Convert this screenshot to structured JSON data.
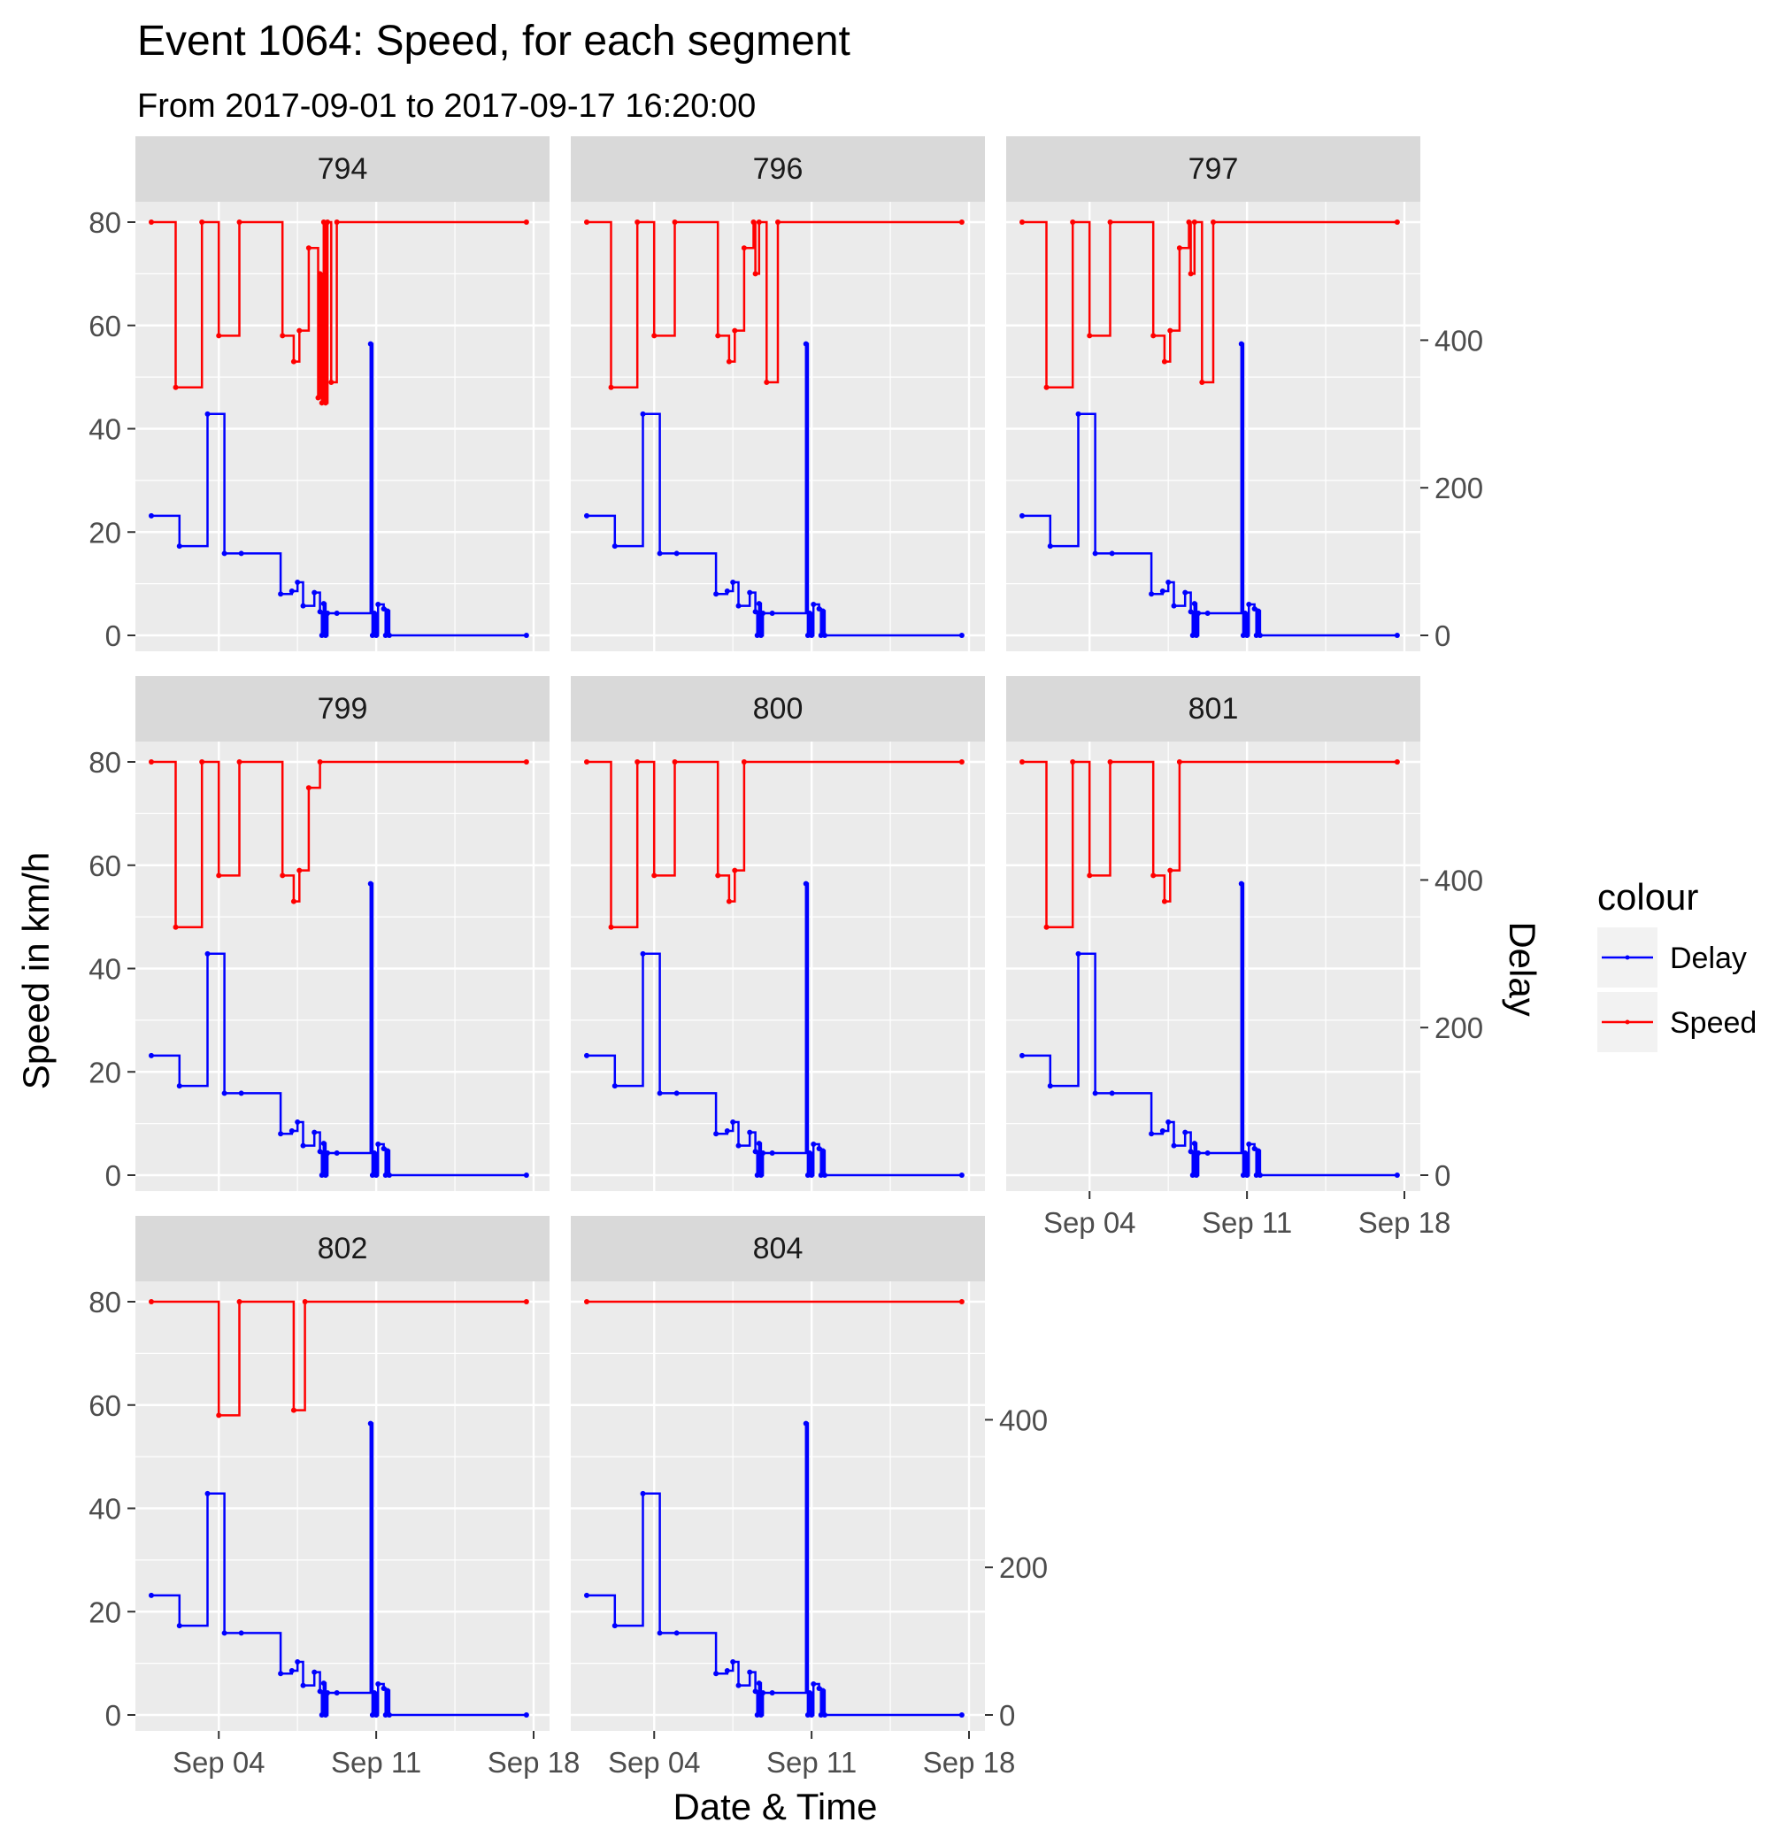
{
  "chart_data": {
    "type": "line",
    "title": "Event 1064: Speed, for each segment",
    "subtitle": "From 2017-09-01 to 2017-09-17 16:20:00",
    "xlabel": "Date & Time",
    "ylabel": "Speed in km/h",
    "y2label": "Delay",
    "x_ticks": [
      "Sep 04",
      "Sep 11",
      "Sep 18"
    ],
    "xlim": [
      "2017-09-01",
      "2017-09-18"
    ],
    "ylim": [
      0,
      80
    ],
    "y_ticks": [
      0,
      20,
      40,
      60,
      80
    ],
    "y2lim": [
      0,
      560
    ],
    "y2_ticks": [
      0,
      200,
      400
    ],
    "legend": {
      "title": "colour",
      "position": "right",
      "entries": [
        {
          "name": "Delay",
          "color": "#0000ff"
        },
        {
          "name": "Speed",
          "color": "#ff0000"
        }
      ]
    },
    "delay_series": [
      [
        "2017-09-01",
        162
      ],
      [
        "2017-09-02 06:00",
        121
      ],
      [
        "2017-09-03 12:00",
        300
      ],
      [
        "2017-09-04 06:00",
        111
      ],
      [
        "2017-09-05",
        111
      ],
      [
        "2017-09-06 18:00",
        56
      ],
      [
        "2017-09-07 06:00",
        60
      ],
      [
        "2017-09-07 12:00",
        72
      ],
      [
        "2017-09-07 18:00",
        40
      ],
      [
        "2017-09-08 06:00",
        58
      ],
      [
        "2017-09-08 12:00",
        32
      ],
      [
        "2017-09-08 14:00",
        0
      ],
      [
        "2017-09-08 16:00",
        43
      ],
      [
        "2017-09-08 18:00",
        0
      ],
      [
        "2017-09-08 20:00",
        30
      ],
      [
        "2017-09-09 06:00",
        30
      ],
      [
        "2017-09-10 18:00",
        395
      ],
      [
        "2017-09-10 20:00",
        0
      ],
      [
        "2017-09-10 22:00",
        30
      ],
      [
        "2017-09-11",
        0
      ],
      [
        "2017-09-11 02:00",
        42
      ],
      [
        "2017-09-11 08:00",
        36
      ],
      [
        "2017-09-11 10:00",
        0
      ],
      [
        "2017-09-11 12:00",
        33
      ],
      [
        "2017-09-11 14:00",
        0
      ],
      [
        "2017-09-17 16:20",
        0
      ]
    ],
    "panels": [
      {
        "label": "794",
        "speed_series": [
          [
            "2017-09-01",
            80
          ],
          [
            "2017-09-02 02:00",
            48
          ],
          [
            "2017-09-03 06:00",
            80
          ],
          [
            "2017-09-04",
            58
          ],
          [
            "2017-09-04 22:00",
            80
          ],
          [
            "2017-09-06 20:00",
            58
          ],
          [
            "2017-09-07 08:00",
            53
          ],
          [
            "2017-09-07 14:00",
            59
          ],
          [
            "2017-09-08",
            75
          ],
          [
            "2017-09-08 10:00",
            46
          ],
          [
            "2017-09-08 12:00",
            70
          ],
          [
            "2017-09-08 14:00",
            45
          ],
          [
            "2017-09-08 16:00",
            80
          ],
          [
            "2017-09-08 18:00",
            45
          ],
          [
            "2017-09-08 20:00",
            80
          ],
          [
            "2017-09-09",
            49
          ],
          [
            "2017-09-09 06:00",
            80
          ],
          [
            "2017-09-17 16:20",
            80
          ]
        ]
      },
      {
        "label": "796",
        "speed_series": [
          [
            "2017-09-01",
            80
          ],
          [
            "2017-09-02 02:00",
            48
          ],
          [
            "2017-09-03 06:00",
            80
          ],
          [
            "2017-09-04",
            58
          ],
          [
            "2017-09-04 22:00",
            80
          ],
          [
            "2017-09-06 20:00",
            58
          ],
          [
            "2017-09-07 08:00",
            53
          ],
          [
            "2017-09-07 14:00",
            59
          ],
          [
            "2017-09-08",
            75
          ],
          [
            "2017-09-08 10:00",
            80
          ],
          [
            "2017-09-08 12:00",
            70
          ],
          [
            "2017-09-08 16:00",
            80
          ],
          [
            "2017-09-09",
            49
          ],
          [
            "2017-09-09 12:00",
            80
          ],
          [
            "2017-09-17 16:20",
            80
          ]
        ]
      },
      {
        "label": "797",
        "speed_series": [
          [
            "2017-09-01",
            80
          ],
          [
            "2017-09-02 02:00",
            48
          ],
          [
            "2017-09-03 06:00",
            80
          ],
          [
            "2017-09-04",
            58
          ],
          [
            "2017-09-04 22:00",
            80
          ],
          [
            "2017-09-06 20:00",
            58
          ],
          [
            "2017-09-07 08:00",
            53
          ],
          [
            "2017-09-07 14:00",
            59
          ],
          [
            "2017-09-08",
            75
          ],
          [
            "2017-09-08 10:00",
            80
          ],
          [
            "2017-09-08 12:00",
            70
          ],
          [
            "2017-09-08 16:00",
            80
          ],
          [
            "2017-09-09",
            49
          ],
          [
            "2017-09-09 12:00",
            80
          ],
          [
            "2017-09-17 16:20",
            80
          ]
        ]
      },
      {
        "label": "799",
        "speed_series": [
          [
            "2017-09-01",
            80
          ],
          [
            "2017-09-02 02:00",
            48
          ],
          [
            "2017-09-03 06:00",
            80
          ],
          [
            "2017-09-04",
            58
          ],
          [
            "2017-09-04 22:00",
            80
          ],
          [
            "2017-09-06 20:00",
            58
          ],
          [
            "2017-09-07 08:00",
            53
          ],
          [
            "2017-09-07 14:00",
            59
          ],
          [
            "2017-09-08",
            75
          ],
          [
            "2017-09-08 12:00",
            80
          ],
          [
            "2017-09-17 16:20",
            80
          ]
        ]
      },
      {
        "label": "800",
        "speed_series": [
          [
            "2017-09-01",
            80
          ],
          [
            "2017-09-02 02:00",
            48
          ],
          [
            "2017-09-03 06:00",
            80
          ],
          [
            "2017-09-04",
            58
          ],
          [
            "2017-09-04 22:00",
            80
          ],
          [
            "2017-09-06 20:00",
            58
          ],
          [
            "2017-09-07 08:00",
            53
          ],
          [
            "2017-09-07 14:00",
            59
          ],
          [
            "2017-09-08",
            80
          ],
          [
            "2017-09-17 16:20",
            80
          ]
        ]
      },
      {
        "label": "801",
        "speed_series": [
          [
            "2017-09-01",
            80
          ],
          [
            "2017-09-02 02:00",
            48
          ],
          [
            "2017-09-03 06:00",
            80
          ],
          [
            "2017-09-04",
            58
          ],
          [
            "2017-09-04 22:00",
            80
          ],
          [
            "2017-09-06 20:00",
            58
          ],
          [
            "2017-09-07 08:00",
            53
          ],
          [
            "2017-09-07 14:00",
            59
          ],
          [
            "2017-09-08",
            80
          ],
          [
            "2017-09-17 16:20",
            80
          ]
        ]
      },
      {
        "label": "802",
        "speed_series": [
          [
            "2017-09-01",
            80
          ],
          [
            "2017-09-04",
            58
          ],
          [
            "2017-09-04 22:00",
            80
          ],
          [
            "2017-09-07 08:00",
            59
          ],
          [
            "2017-09-07 20:00",
            80
          ],
          [
            "2017-09-17 16:20",
            80
          ]
        ]
      },
      {
        "label": "804",
        "speed_series": [
          [
            "2017-09-01",
            80
          ],
          [
            "2017-09-17 16:20",
            80
          ]
        ]
      }
    ]
  }
}
